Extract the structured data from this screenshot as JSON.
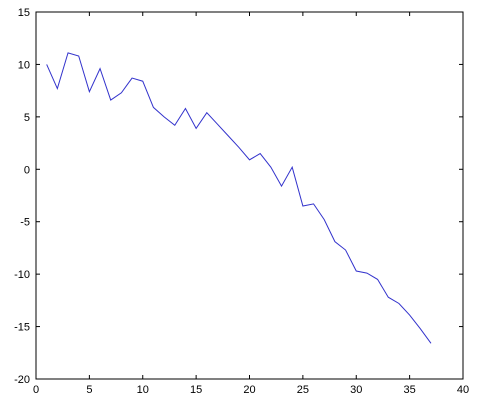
{
  "chart_data": {
    "type": "line",
    "title": "",
    "xlabel": "",
    "ylabel": "",
    "xlim": [
      0,
      40
    ],
    "ylim": [
      -20,
      15
    ],
    "grid": false,
    "x_ticks": [
      0,
      5,
      10,
      15,
      20,
      25,
      30,
      35,
      40
    ],
    "y_ticks": [
      -20,
      -15,
      -10,
      -5,
      0,
      5,
      10,
      15
    ],
    "series": [
      {
        "color": "#3333cc",
        "x": [
          1,
          2,
          3,
          4,
          5,
          6,
          7,
          8,
          9,
          10,
          11,
          12,
          13,
          14,
          15,
          16,
          17,
          18,
          19,
          20,
          21,
          22,
          23,
          24,
          25,
          26,
          27,
          28,
          29,
          30,
          31,
          32,
          33,
          34,
          35,
          36,
          37
        ],
        "values": [
          10.0,
          7.7,
          11.1,
          10.8,
          7.4,
          9.6,
          6.6,
          7.3,
          8.7,
          8.4,
          5.9,
          5.0,
          4.2,
          5.8,
          3.9,
          5.4,
          4.3,
          3.2,
          2.1,
          0.9,
          1.5,
          0.2,
          -1.6,
          0.2,
          -3.5,
          -3.3,
          -4.8,
          -6.9,
          -7.7,
          -9.7,
          -9.9,
          -10.5,
          -12.2,
          -12.8,
          -13.9,
          -15.2,
          -16.6
        ]
      }
    ]
  }
}
